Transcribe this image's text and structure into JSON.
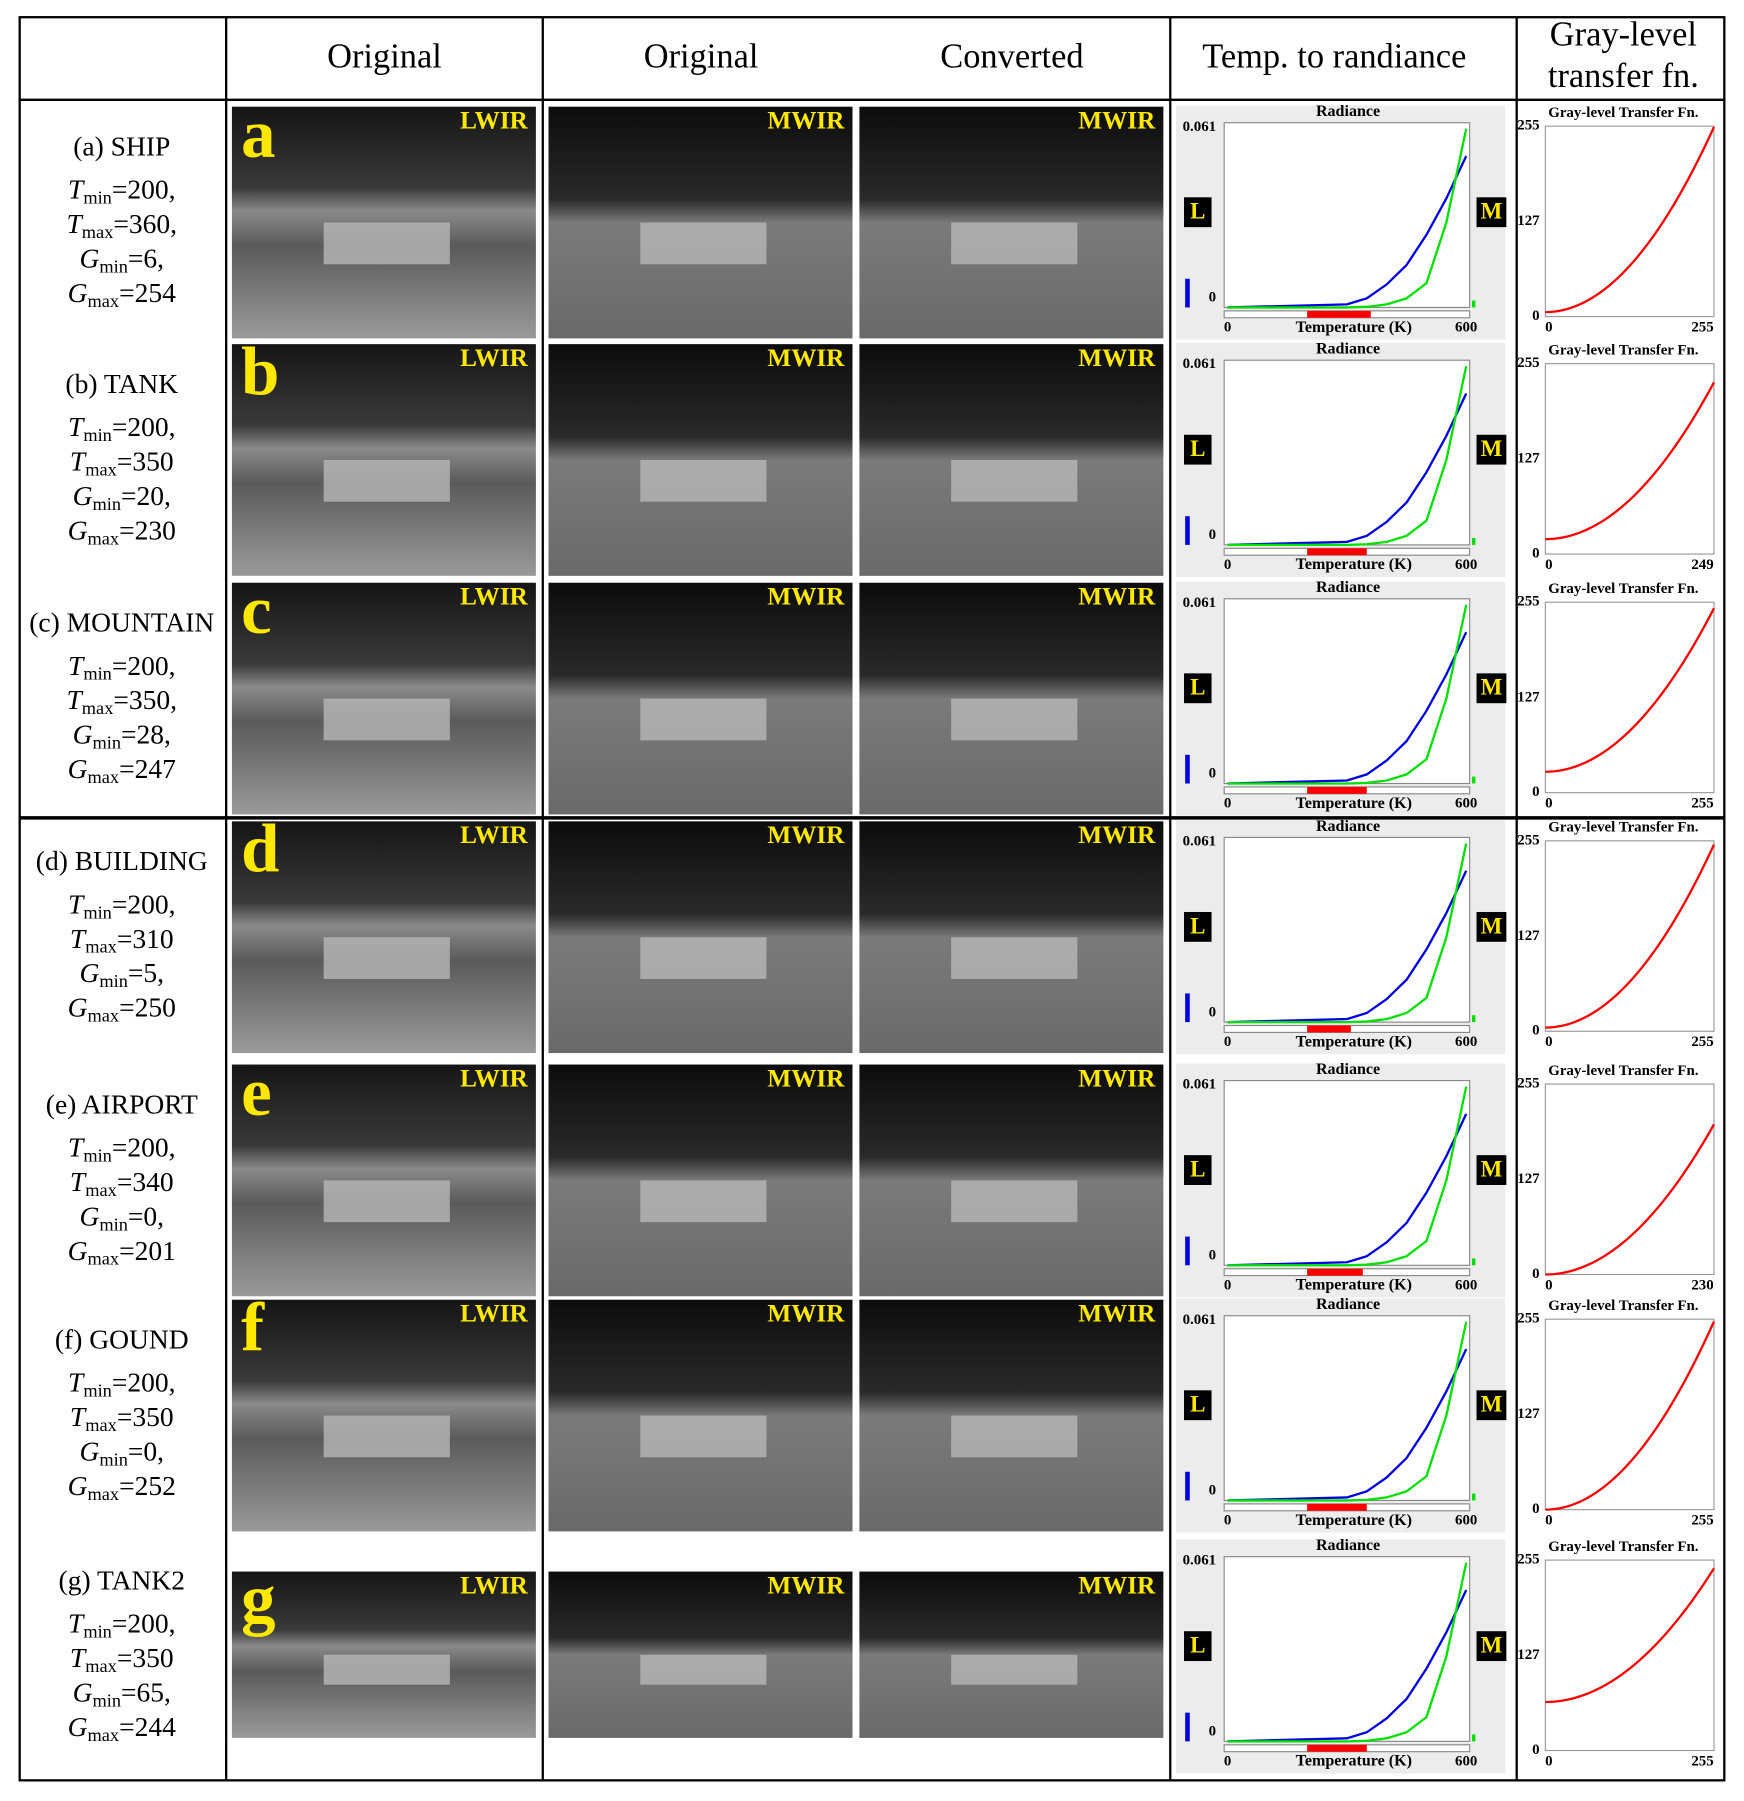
{
  "header": {
    "original_lwir": "Original",
    "original_mwir": "Original",
    "converted": "Converted",
    "radiance": "Temp. to randiance",
    "gray_level": [
      "Gray-level",
      "transfer fn."
    ]
  },
  "rows": [
    {
      "label": "(a) SHIP",
      "letter": "a",
      "images": [
        "LWIR",
        "MWIR",
        "MWIR"
      ],
      "params": [
        {
          "symbol": "T",
          "subscript": "min",
          "value": 200,
          "label": "=200,"
        },
        {
          "symbol": "T",
          "subscript": "max",
          "value": 360,
          "label": "=360,"
        },
        {
          "symbol": "G",
          "subscript": "min",
          "value": 6,
          "label": "=6,"
        },
        {
          "symbol": "G",
          "subscript": "max",
          "value": 254,
          "label": "=254"
        }
      ],
      "radiance": {
        "title": "Radiance",
        "xlabel": "Temperature (K)",
        "left_tag": "L",
        "right_tag": "M",
        "xlim": [
          0,
          600
        ],
        "xticks": [
          0,
          600
        ],
        "ylim": [
          0,
          0.061
        ],
        "yticks": [
          0,
          0.061
        ],
        "range_color": "#ff0000",
        "x": [
          0,
          300,
          350,
          400,
          450,
          500,
          550,
          600
        ],
        "series": [
          {
            "color": "#0000e0",
            "values": [
              0,
              0.001,
              0.003,
              0.0076,
              0.014,
              0.024,
              0.036,
              0.05
            ]
          },
          {
            "color": "#00e000",
            "values": [
              0,
              0,
              0.0002,
              0.001,
              0.003,
              0.008,
              0.028,
              0.059
            ]
          }
        ]
      },
      "gray": {
        "title": "Gray-level Transfer Fn.",
        "xlim": [
          0,
          255
        ],
        "xticks": [
          0,
          255
        ],
        "ylim": [
          0,
          255
        ],
        "yticks": [
          0,
          127,
          255
        ],
        "color": "#ff0000"
      }
    },
    {
      "label": "(b) TANK",
      "letter": "b",
      "images": [
        "LWIR",
        "MWIR",
        "MWIR"
      ],
      "params": [
        {
          "symbol": "T",
          "subscript": "min",
          "value": 200,
          "label": "=200,"
        },
        {
          "symbol": "T",
          "subscript": "max",
          "value": 350,
          "label": "=350"
        },
        {
          "symbol": "G",
          "subscript": "min",
          "value": 20,
          "label": "=20,"
        },
        {
          "symbol": "G",
          "subscript": "max",
          "value": 230,
          "label": "=230"
        }
      ],
      "radiance": {
        "title": "Radiance",
        "xlabel": "Temperature (K)",
        "left_tag": "L",
        "right_tag": "M",
        "xlim": [
          0,
          600
        ],
        "xticks": [
          0,
          600
        ],
        "ylim": [
          0,
          0.061
        ],
        "yticks": [
          0,
          0.061
        ],
        "range_color": "#ff0000",
        "x": [
          0,
          300,
          350,
          400,
          450,
          500,
          550,
          600
        ],
        "series": [
          {
            "color": "#0000e0",
            "values": [
              0,
              0.001,
              0.003,
              0.0076,
              0.014,
              0.024,
              0.036,
              0.05
            ]
          },
          {
            "color": "#00e000",
            "values": [
              0,
              0,
              0.0002,
              0.001,
              0.003,
              0.008,
              0.028,
              0.059
            ]
          }
        ]
      },
      "gray": {
        "title": "Gray-level Transfer Fn.",
        "xlim": [
          0,
          249
        ],
        "xticks": [
          0,
          249
        ],
        "ylim": [
          0,
          255
        ],
        "yticks": [
          0,
          127,
          255
        ],
        "color": "#ff0000"
      }
    },
    {
      "label": "(c) MOUNTAIN",
      "letter": "c",
      "images": [
        "LWIR",
        "MWIR",
        "MWIR"
      ],
      "params": [
        {
          "symbol": "T",
          "subscript": "min",
          "value": 200,
          "label": "=200,"
        },
        {
          "symbol": "T",
          "subscript": "max",
          "value": 350,
          "label": "=350,"
        },
        {
          "symbol": "G",
          "subscript": "min",
          "value": 28,
          "label": "=28,"
        },
        {
          "symbol": "G",
          "subscript": "max",
          "value": 247,
          "label": "=247"
        }
      ],
      "radiance": {
        "title": "Radiance",
        "xlabel": "Temperature (K)",
        "left_tag": "L",
        "right_tag": "M",
        "xlim": [
          0,
          600
        ],
        "xticks": [
          0,
          600
        ],
        "ylim": [
          0,
          0.061
        ],
        "yticks": [
          0,
          0.061
        ],
        "range_color": "#ff0000",
        "x": [
          0,
          300,
          350,
          400,
          450,
          500,
          550,
          600
        ],
        "series": [
          {
            "color": "#0000e0",
            "values": [
              0,
              0.001,
              0.003,
              0.0076,
              0.014,
              0.024,
              0.036,
              0.05
            ]
          },
          {
            "color": "#00e000",
            "values": [
              0,
              0,
              0.0002,
              0.001,
              0.003,
              0.008,
              0.028,
              0.059
            ]
          }
        ]
      },
      "gray": {
        "title": "Gray-level Transfer Fn.",
        "xlim": [
          0,
          255
        ],
        "xticks": [
          0,
          255
        ],
        "ylim": [
          0,
          255
        ],
        "yticks": [
          0,
          127,
          255
        ],
        "color": "#ff0000"
      }
    },
    {
      "label": "(d) BUILDING",
      "letter": "d",
      "images": [
        "LWIR",
        "MWIR",
        "MWIR"
      ],
      "params": [
        {
          "symbol": "T",
          "subscript": "min",
          "value": 200,
          "label": "=200,"
        },
        {
          "symbol": "T",
          "subscript": "max",
          "value": 310,
          "label": "=310"
        },
        {
          "symbol": "G",
          "subscript": "min",
          "value": 5,
          "label": "=5,"
        },
        {
          "symbol": "G",
          "subscript": "max",
          "value": 250,
          "label": "=250"
        }
      ],
      "radiance": {
        "title": "Radiance",
        "xlabel": "Temperature (K)",
        "left_tag": "L",
        "right_tag": "M",
        "xlim": [
          0,
          600
        ],
        "xticks": [
          0,
          600
        ],
        "ylim": [
          0,
          0.061
        ],
        "yticks": [
          0,
          0.061
        ],
        "range_color": "#ff0000",
        "x": [
          0,
          300,
          350,
          400,
          450,
          500,
          550,
          600
        ],
        "series": [
          {
            "color": "#0000e0",
            "values": [
              0,
              0.001,
              0.003,
              0.0076,
              0.014,
              0.024,
              0.036,
              0.05
            ]
          },
          {
            "color": "#00e000",
            "values": [
              0,
              0,
              0.0002,
              0.001,
              0.003,
              0.008,
              0.028,
              0.059
            ]
          }
        ]
      },
      "gray": {
        "title": "Gray-level Transfer Fn.",
        "xlim": [
          0,
          255
        ],
        "xticks": [
          0,
          255
        ],
        "ylim": [
          0,
          255
        ],
        "yticks": [
          0,
          127,
          255
        ],
        "color": "#ff0000"
      }
    },
    {
      "label": "(e) AIRPORT",
      "letter": "e",
      "images": [
        "LWIR",
        "MWIR",
        "MWIR"
      ],
      "params": [
        {
          "symbol": "T",
          "subscript": "min",
          "value": 200,
          "label": "=200,"
        },
        {
          "symbol": "T",
          "subscript": "max",
          "value": 340,
          "label": "=340"
        },
        {
          "symbol": "G",
          "subscript": "min",
          "value": 0,
          "label": "=0,"
        },
        {
          "symbol": "G",
          "subscript": "max",
          "value": 201,
          "label": "=201"
        }
      ],
      "radiance": {
        "title": "Radiance",
        "xlabel": "Temperature (K)",
        "left_tag": "L",
        "right_tag": "M",
        "xlim": [
          0,
          600
        ],
        "xticks": [
          0,
          600
        ],
        "ylim": [
          0,
          0.061
        ],
        "yticks": [
          0,
          0.061
        ],
        "range_color": "#ff0000",
        "x": [
          0,
          300,
          350,
          400,
          450,
          500,
          550,
          600
        ],
        "series": [
          {
            "color": "#0000e0",
            "values": [
              0,
              0.001,
              0.003,
              0.0076,
              0.014,
              0.024,
              0.036,
              0.05
            ]
          },
          {
            "color": "#00e000",
            "values": [
              0,
              0,
              0.0002,
              0.001,
              0.003,
              0.008,
              0.028,
              0.059
            ]
          }
        ]
      },
      "gray": {
        "title": "Gray-level Transfer Fn.",
        "xlim": [
          0,
          230
        ],
        "xticks": [
          0,
          230
        ],
        "ylim": [
          0,
          255
        ],
        "yticks": [
          0,
          127,
          255
        ],
        "color": "#ff0000"
      }
    },
    {
      "label": "(f) GOUND",
      "letter": "f",
      "images": [
        "LWIR",
        "MWIR",
        "MWIR"
      ],
      "params": [
        {
          "symbol": "T",
          "subscript": "min",
          "value": 200,
          "label": "=200,"
        },
        {
          "symbol": "T",
          "subscript": "max",
          "value": 350,
          "label": "=350"
        },
        {
          "symbol": "G",
          "subscript": "min",
          "value": 0,
          "label": "=0,"
        },
        {
          "symbol": "G",
          "subscript": "max",
          "value": 252,
          "label": "=252"
        }
      ],
      "radiance": {
        "title": "Radiance",
        "xlabel": "Temperature (K)",
        "left_tag": "L",
        "right_tag": "M",
        "xlim": [
          0,
          600
        ],
        "xticks": [
          0,
          600
        ],
        "ylim": [
          0,
          0.061
        ],
        "yticks": [
          0,
          0.061
        ],
        "range_color": "#ff0000",
        "x": [
          0,
          300,
          350,
          400,
          450,
          500,
          550,
          600
        ],
        "series": [
          {
            "color": "#0000e0",
            "values": [
              0,
              0.001,
              0.003,
              0.0076,
              0.014,
              0.024,
              0.036,
              0.05
            ]
          },
          {
            "color": "#00e000",
            "values": [
              0,
              0,
              0.0002,
              0.001,
              0.003,
              0.008,
              0.028,
              0.059
            ]
          }
        ]
      },
      "gray": {
        "title": "Gray-level Transfer Fn.",
        "xlim": [
          0,
          255
        ],
        "xticks": [
          0,
          255
        ],
        "ylim": [
          0,
          255
        ],
        "yticks": [
          0,
          127,
          255
        ],
        "color": "#ff0000"
      }
    },
    {
      "label": "(g) TANK2",
      "letter": "g",
      "images": [
        "LWIR",
        "MWIR",
        "MWIR"
      ],
      "params": [
        {
          "symbol": "T",
          "subscript": "min",
          "value": 200,
          "label": "=200,"
        },
        {
          "symbol": "T",
          "subscript": "max",
          "value": 350,
          "label": "=350"
        },
        {
          "symbol": "G",
          "subscript": "min",
          "value": 65,
          "label": "=65,"
        },
        {
          "symbol": "G",
          "subscript": "max",
          "value": 244,
          "label": "=244"
        }
      ],
      "radiance": {
        "title": "Radiance",
        "xlabel": "Temperature (K)",
        "left_tag": "L",
        "right_tag": "M",
        "xlim": [
          0,
          600
        ],
        "xticks": [
          0,
          600
        ],
        "ylim": [
          0,
          0.061
        ],
        "yticks": [
          0,
          0.061
        ],
        "range_color": "#ff0000",
        "x": [
          0,
          300,
          350,
          400,
          450,
          500,
          550,
          600
        ],
        "series": [
          {
            "color": "#0000e0",
            "values": [
              0,
              0.001,
              0.003,
              0.0076,
              0.014,
              0.024,
              0.036,
              0.05
            ]
          },
          {
            "color": "#00e000",
            "values": [
              0,
              0,
              0.0002,
              0.001,
              0.003,
              0.008,
              0.028,
              0.059
            ]
          }
        ]
      },
      "gray": {
        "title": "Gray-level Transfer Fn.",
        "xlim": [
          0,
          255
        ],
        "xticks": [
          0,
          255
        ],
        "ylim": [
          0,
          255
        ],
        "yticks": [
          0,
          127,
          255
        ],
        "color": "#ff0000"
      }
    }
  ]
}
